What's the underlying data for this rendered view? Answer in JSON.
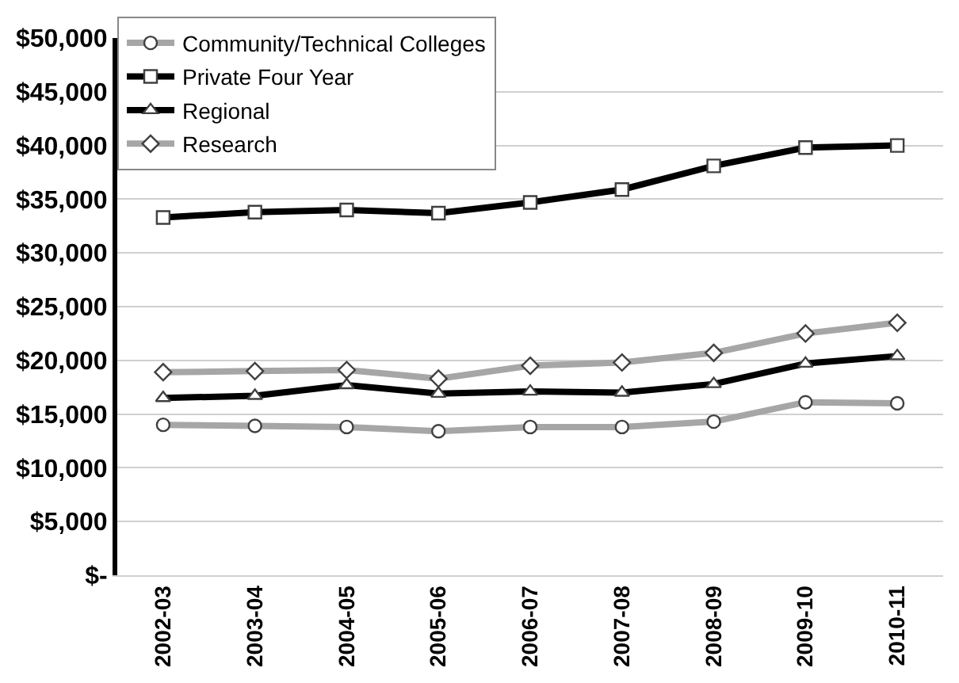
{
  "chart_data": {
    "type": "line",
    "categories": [
      "2002-03",
      "2003-04",
      "2004-05",
      "2005-06",
      "2006-07",
      "2007-08",
      "2008-09",
      "2009-10",
      "2010-11"
    ],
    "series": [
      {
        "name": "Community/Technical Colleges",
        "color": "#a6a6a6",
        "marker": "circle",
        "values": [
          14000,
          13900,
          13800,
          13400,
          13800,
          13800,
          14300,
          16100,
          16000
        ]
      },
      {
        "name": "Private Four Year",
        "color": "#000000",
        "marker": "square",
        "values": [
          33300,
          33800,
          34000,
          33700,
          34700,
          35900,
          38100,
          39800,
          40000
        ]
      },
      {
        "name": "Regional",
        "color": "#000000",
        "marker": "triangle",
        "values": [
          16500,
          16700,
          17700,
          16900,
          17100,
          17000,
          17800,
          19700,
          20400
        ]
      },
      {
        "name": "Research",
        "color": "#a6a6a6",
        "marker": "diamond",
        "values": [
          18900,
          19000,
          19100,
          18300,
          19500,
          19800,
          20700,
          22500,
          23500
        ]
      }
    ],
    "ylim": [
      0,
      50000
    ],
    "yticks": [
      {
        "value": 0,
        "label": "$-"
      },
      {
        "value": 5000,
        "label": "$5,000"
      },
      {
        "value": 10000,
        "label": "$10,000"
      },
      {
        "value": 15000,
        "label": "$15,000"
      },
      {
        "value": 20000,
        "label": "$20,000"
      },
      {
        "value": 25000,
        "label": "$25,000"
      },
      {
        "value": 30000,
        "label": "$30,000"
      },
      {
        "value": 35000,
        "label": "$35,000"
      },
      {
        "value": 40000,
        "label": "$40,000"
      },
      {
        "value": 45000,
        "label": "$45,000"
      },
      {
        "value": 50000,
        "label": "$50,000"
      }
    ],
    "grid": "y",
    "legend": "top left",
    "line_style": "solid"
  }
}
